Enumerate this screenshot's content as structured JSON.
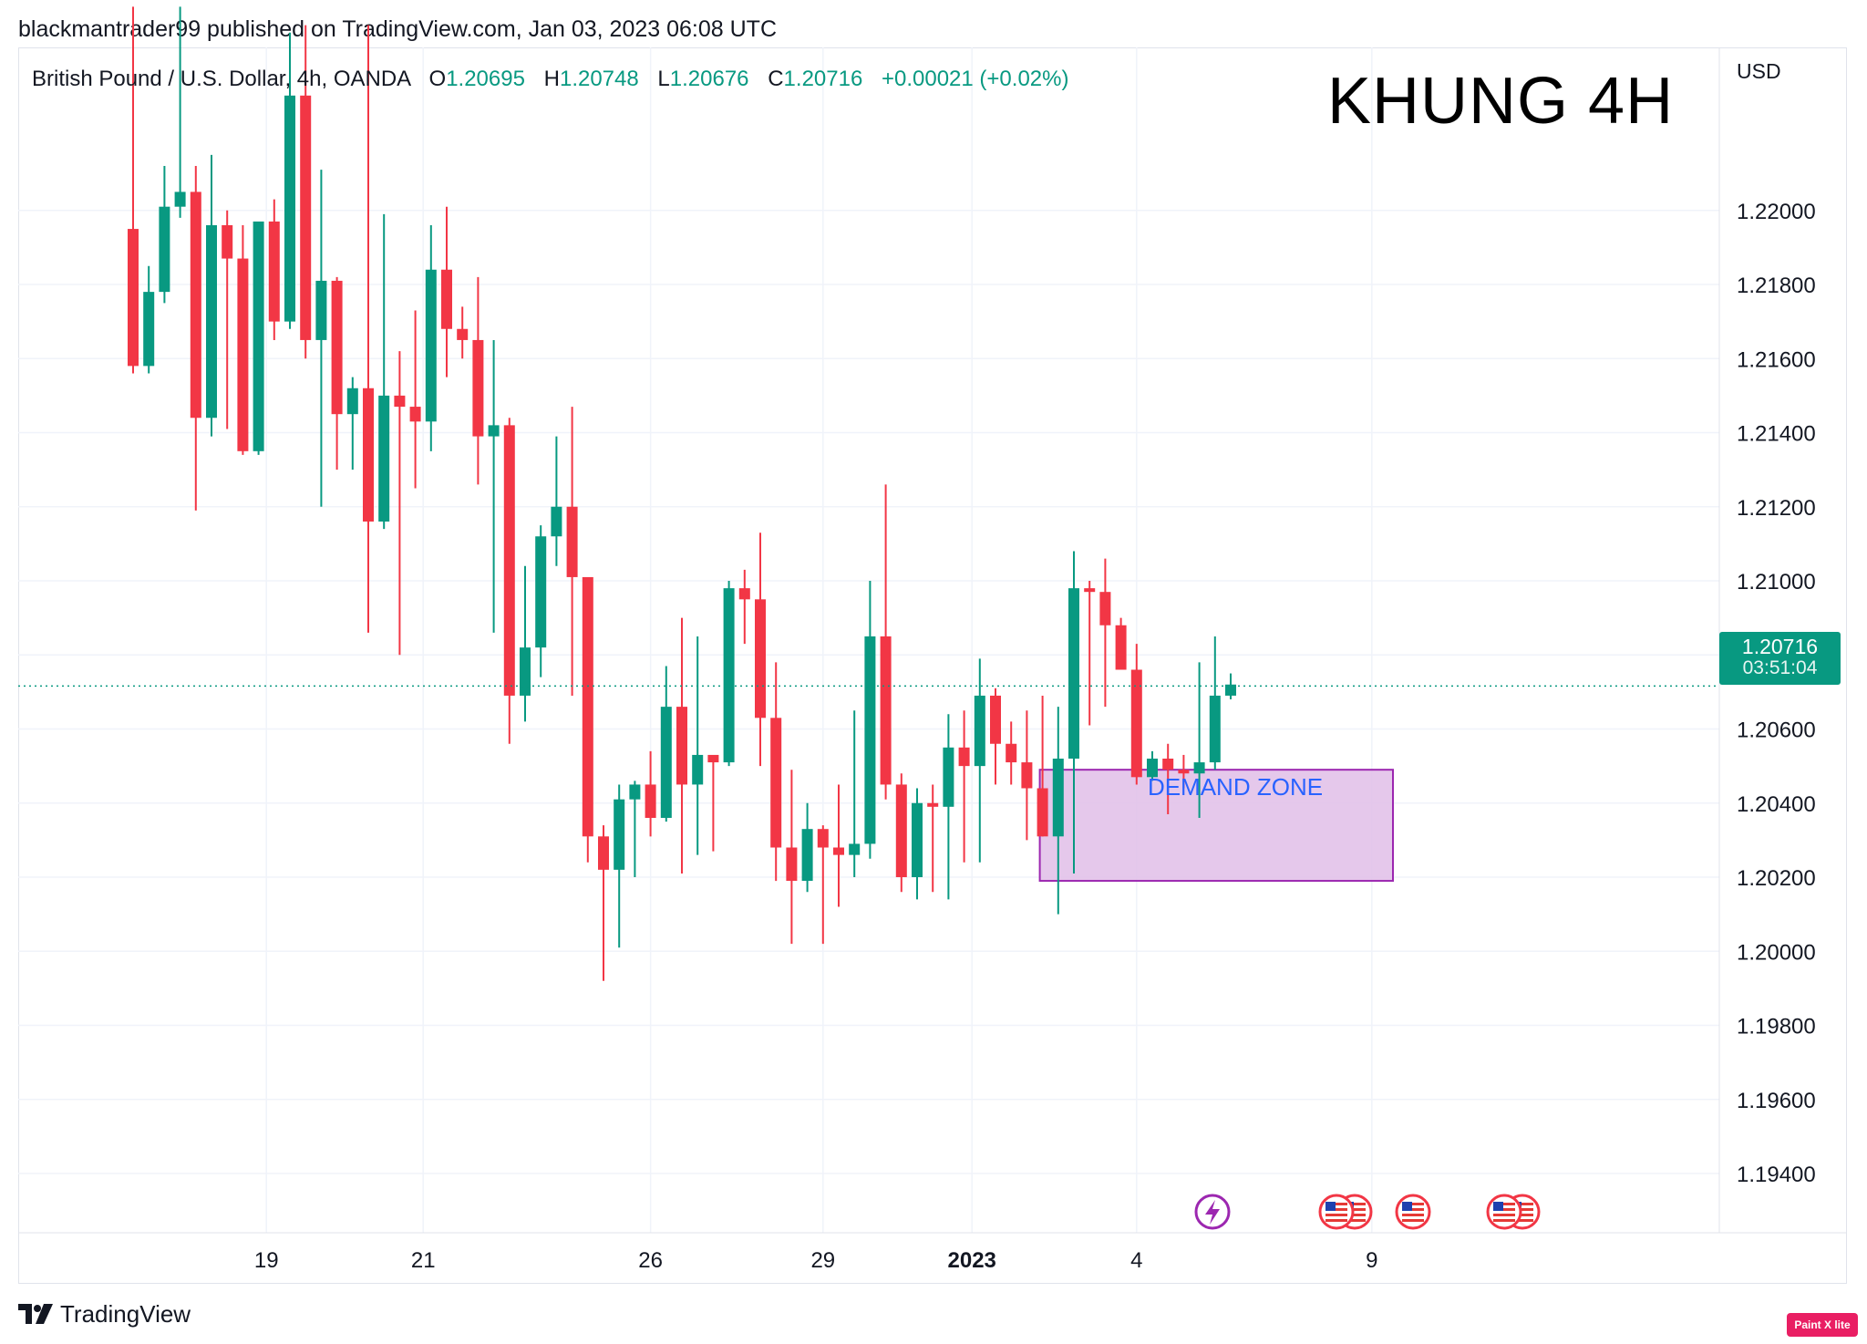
{
  "header": {
    "published": "blackmantrader99 published on TradingView.com, Jan 03, 2023 06:08 UTC"
  },
  "legend": {
    "symbol": "British Pound / U.S. Dollar, 4h, OANDA",
    "o_key": "O",
    "o_val": "1.20695",
    "h_key": "H",
    "h_val": "1.20748",
    "l_key": "L",
    "l_val": "1.20676",
    "c_key": "C",
    "c_val": "1.20716",
    "change": "+0.00021 (+0.02%)"
  },
  "overlay_title": "KHUNG 4H",
  "current_price": {
    "price": "1.20716",
    "countdown": "03:51:04"
  },
  "demand_zone": {
    "label": "DEMAND ZONE",
    "top": 1.2049,
    "bottom": 1.2019,
    "start_index": 58,
    "end_index": 80
  },
  "footer": {
    "brand": "TradingView",
    "badge": "Paint X lite"
  },
  "colors": {
    "up": "#089981",
    "down": "#f23645",
    "zone_fill": "#e1bee7",
    "zone_border": "#9c27b0",
    "zone_text": "#2962ff",
    "grid": "#f0f3fa"
  },
  "event_icons": [
    "lightning-icon",
    "us-flag-icon",
    "us-flag-icon",
    "us-flag-icon",
    "us-flag-icon",
    "us-flag-icon"
  ],
  "chart_data": {
    "type": "candlestick",
    "y_axis_label": "USD",
    "ylim": [
      1.1924,
      1.2244
    ],
    "y_ticks": [
      "1.22000",
      "1.21800",
      "1.21600",
      "1.21400",
      "1.21200",
      "1.21000",
      "1.20800",
      "1.20600",
      "1.20400",
      "1.20200",
      "1.20000",
      "1.19800",
      "1.19600",
      "1.19400"
    ],
    "x_ticks": [
      {
        "label": "19",
        "index": 8.5,
        "bold": false
      },
      {
        "label": "21",
        "index": 18.5,
        "bold": false
      },
      {
        "label": "26",
        "index": 33,
        "bold": false
      },
      {
        "label": "29",
        "index": 44,
        "bold": false
      },
      {
        "label": "2023",
        "index": 53.5,
        "bold": true
      },
      {
        "label": "4",
        "index": 64,
        "bold": false
      },
      {
        "label": "9",
        "index": 79,
        "bold": false
      }
    ],
    "last_price": 1.20716,
    "grid": true,
    "candles": [
      {
        "o": 1.2195,
        "h": 1.2255,
        "l": 1.2156,
        "c": 1.2158
      },
      {
        "o": 1.2158,
        "h": 1.2185,
        "l": 1.2156,
        "c": 1.2178
      },
      {
        "o": 1.2178,
        "h": 1.2212,
        "l": 1.2175,
        "c": 1.2201
      },
      {
        "o": 1.2201,
        "h": 1.2255,
        "l": 1.2198,
        "c": 1.2205
      },
      {
        "o": 1.2205,
        "h": 1.2212,
        "l": 1.2119,
        "c": 1.2144
      },
      {
        "o": 1.2144,
        "h": 1.2215,
        "l": 1.2139,
        "c": 1.2196
      },
      {
        "o": 1.2196,
        "h": 1.22,
        "l": 1.2141,
        "c": 1.2187
      },
      {
        "o": 1.2187,
        "h": 1.2196,
        "l": 1.2134,
        "c": 1.2135
      },
      {
        "o": 1.2135,
        "h": 1.2197,
        "l": 1.2134,
        "c": 1.2197
      },
      {
        "o": 1.2197,
        "h": 1.2203,
        "l": 1.2165,
        "c": 1.217
      },
      {
        "o": 1.217,
        "h": 1.2248,
        "l": 1.2168,
        "c": 1.2231
      },
      {
        "o": 1.2231,
        "h": 1.225,
        "l": 1.216,
        "c": 1.2165
      },
      {
        "o": 1.2165,
        "h": 1.2211,
        "l": 1.212,
        "c": 1.2181
      },
      {
        "o": 1.2181,
        "h": 1.2182,
        "l": 1.213,
        "c": 1.2145
      },
      {
        "o": 1.2145,
        "h": 1.2155,
        "l": 1.213,
        "c": 1.2152
      },
      {
        "o": 1.2152,
        "h": 1.225,
        "l": 1.2086,
        "c": 1.2116
      },
      {
        "o": 1.2116,
        "h": 1.2199,
        "l": 1.2114,
        "c": 1.215
      },
      {
        "o": 1.215,
        "h": 1.2162,
        "l": 1.208,
        "c": 1.2147
      },
      {
        "o": 1.2147,
        "h": 1.2173,
        "l": 1.2125,
        "c": 1.2143
      },
      {
        "o": 1.2143,
        "h": 1.2196,
        "l": 1.2135,
        "c": 1.2184
      },
      {
        "o": 1.2184,
        "h": 1.2201,
        "l": 1.2155,
        "c": 1.2168
      },
      {
        "o": 1.2168,
        "h": 1.2174,
        "l": 1.216,
        "c": 1.2165
      },
      {
        "o": 1.2165,
        "h": 1.2182,
        "l": 1.2126,
        "c": 1.2139
      },
      {
        "o": 1.2139,
        "h": 1.2165,
        "l": 1.2086,
        "c": 1.2142
      },
      {
        "o": 1.2142,
        "h": 1.2144,
        "l": 1.2056,
        "c": 1.2069
      },
      {
        "o": 1.2069,
        "h": 1.2104,
        "l": 1.2062,
        "c": 1.2082
      },
      {
        "o": 1.2082,
        "h": 1.2115,
        "l": 1.2074,
        "c": 1.2112
      },
      {
        "o": 1.2112,
        "h": 1.2139,
        "l": 1.2104,
        "c": 1.212
      },
      {
        "o": 1.212,
        "h": 1.2147,
        "l": 1.2069,
        "c": 1.2101
      },
      {
        "o": 1.2101,
        "h": 1.2101,
        "l": 1.2024,
        "c": 1.2031
      },
      {
        "o": 1.2031,
        "h": 1.2034,
        "l": 1.1992,
        "c": 1.2022
      },
      {
        "o": 1.2022,
        "h": 1.2045,
        "l": 1.2001,
        "c": 1.2041
      },
      {
        "o": 1.2041,
        "h": 1.2046,
        "l": 1.202,
        "c": 1.2045
      },
      {
        "o": 1.2045,
        "h": 1.2054,
        "l": 1.2031,
        "c": 1.2036
      },
      {
        "o": 1.2036,
        "h": 1.2077,
        "l": 1.2035,
        "c": 1.2066
      },
      {
        "o": 1.2066,
        "h": 1.209,
        "l": 1.2021,
        "c": 1.2045
      },
      {
        "o": 1.2045,
        "h": 1.2085,
        "l": 1.2026,
        "c": 1.2053
      },
      {
        "o": 1.2053,
        "h": 1.2052,
        "l": 1.2027,
        "c": 1.2051
      },
      {
        "o": 1.2051,
        "h": 1.21,
        "l": 1.205,
        "c": 1.2098
      },
      {
        "o": 1.2098,
        "h": 1.2103,
        "l": 1.2083,
        "c": 1.2095
      },
      {
        "o": 1.2095,
        "h": 1.2113,
        "l": 1.205,
        "c": 1.2063
      },
      {
        "o": 1.2063,
        "h": 1.2078,
        "l": 1.2019,
        "c": 1.2028
      },
      {
        "o": 1.2028,
        "h": 1.2049,
        "l": 1.2002,
        "c": 1.2019
      },
      {
        "o": 1.2019,
        "h": 1.204,
        "l": 1.2016,
        "c": 1.2033
      },
      {
        "o": 1.2033,
        "h": 1.2034,
        "l": 1.2002,
        "c": 1.2028
      },
      {
        "o": 1.2028,
        "h": 1.2045,
        "l": 1.2012,
        "c": 1.2026
      },
      {
        "o": 1.2026,
        "h": 1.2065,
        "l": 1.202,
        "c": 1.2029
      },
      {
        "o": 1.2029,
        "h": 1.21,
        "l": 1.2025,
        "c": 1.2085
      },
      {
        "o": 1.2085,
        "h": 1.2126,
        "l": 1.2041,
        "c": 1.2045
      },
      {
        "o": 1.2045,
        "h": 1.2048,
        "l": 1.2016,
        "c": 1.202
      },
      {
        "o": 1.202,
        "h": 1.2044,
        "l": 1.2014,
        "c": 1.204
      },
      {
        "o": 1.204,
        "h": 1.2045,
        "l": 1.2016,
        "c": 1.2039
      },
      {
        "o": 1.2039,
        "h": 1.2064,
        "l": 1.2014,
        "c": 1.2055
      },
      {
        "o": 1.2055,
        "h": 1.2065,
        "l": 1.2024,
        "c": 1.205
      },
      {
        "o": 1.205,
        "h": 1.2079,
        "l": 1.2024,
        "c": 1.2069
      },
      {
        "o": 1.2069,
        "h": 1.2071,
        "l": 1.2045,
        "c": 1.2056
      },
      {
        "o": 1.2056,
        "h": 1.2062,
        "l": 1.2045,
        "c": 1.2051
      },
      {
        "o": 1.2051,
        "h": 1.2065,
        "l": 1.203,
        "c": 1.2044
      },
      {
        "o": 1.2044,
        "h": 1.2069,
        "l": 1.2031,
        "c": 1.2031
      },
      {
        "o": 1.2031,
        "h": 1.2066,
        "l": 1.201,
        "c": 1.2052
      },
      {
        "o": 1.2052,
        "h": 1.2108,
        "l": 1.2021,
        "c": 1.2098
      },
      {
        "o": 1.2098,
        "h": 1.21,
        "l": 1.2061,
        "c": 1.2097
      },
      {
        "o": 1.2097,
        "h": 1.2106,
        "l": 1.2066,
        "c": 1.2088
      },
      {
        "o": 1.2088,
        "h": 1.209,
        "l": 1.2076,
        "c": 1.2076
      },
      {
        "o": 1.2076,
        "h": 1.2083,
        "l": 1.2045,
        "c": 1.2047
      },
      {
        "o": 1.2047,
        "h": 1.2054,
        "l": 1.2046,
        "c": 1.2052
      },
      {
        "o": 1.2052,
        "h": 1.2056,
        "l": 1.2037,
        "c": 1.2049
      },
      {
        "o": 1.2049,
        "h": 1.2053,
        "l": 1.2044,
        "c": 1.2048
      },
      {
        "o": 1.2048,
        "h": 1.2078,
        "l": 1.2036,
        "c": 1.2051
      },
      {
        "o": 1.2051,
        "h": 1.2085,
        "l": 1.2049,
        "c": 1.2069
      },
      {
        "o": 1.2069,
        "h": 1.2075,
        "l": 1.2068,
        "c": 1.2072
      }
    ]
  }
}
